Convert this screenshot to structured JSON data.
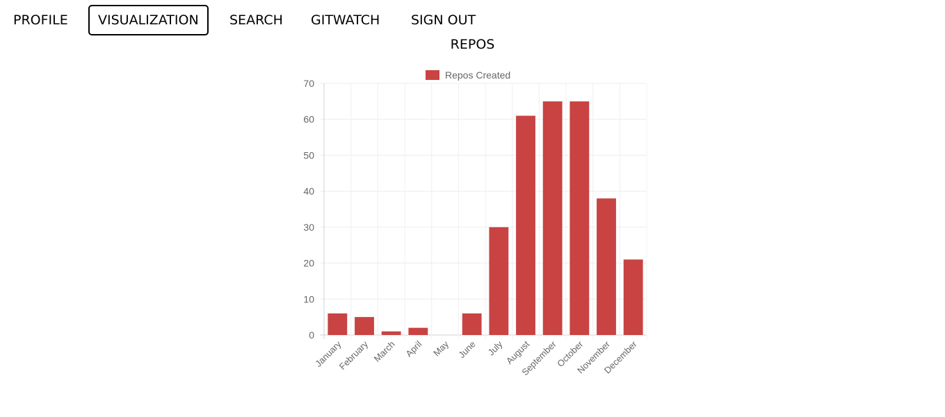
{
  "nav": {
    "items": [
      {
        "label": "PROFILE",
        "active": false
      },
      {
        "label": "VISUALIZATION",
        "active": true
      },
      {
        "label": "SEARCH",
        "active": false
      },
      {
        "label": "GITWATCH",
        "active": false
      },
      {
        "label": "SIGN OUT",
        "active": false
      }
    ]
  },
  "page": {
    "title": "REPOS"
  },
  "chart_data": {
    "type": "bar",
    "title": "",
    "xlabel": "",
    "ylabel": "",
    "categories": [
      "January",
      "February",
      "March",
      "April",
      "May",
      "June",
      "July",
      "August",
      "September",
      "October",
      "November",
      "December"
    ],
    "series": [
      {
        "name": "Repos Created",
        "color": "#c94343",
        "values": [
          6,
          5,
          1,
          2,
          0,
          6,
          30,
          61,
          65,
          65,
          38,
          21
        ]
      }
    ],
    "ylim": [
      0,
      70
    ],
    "yticks": [
      0,
      10,
      20,
      30,
      40,
      50,
      60,
      70
    ],
    "grid": true,
    "legend_position": "top"
  }
}
